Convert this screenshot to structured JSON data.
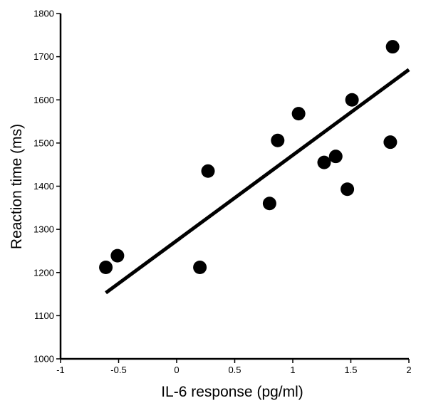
{
  "chart_data": {
    "type": "scatter",
    "title": "",
    "xlabel": "IL-6 response (pg/ml)",
    "ylabel": "Reaction time (ms)",
    "xlim": [
      -1,
      2
    ],
    "ylim": [
      1000,
      1800
    ],
    "xticks": [
      -1,
      -0.5,
      0,
      0.5,
      1,
      1.5,
      2
    ],
    "xtick_labels": [
      "-1",
      "-0.5",
      "0",
      "0.5",
      "1",
      "1.5",
      "2"
    ],
    "yticks": [
      1000,
      1100,
      1200,
      1300,
      1400,
      1500,
      1600,
      1700,
      1800
    ],
    "ytick_labels": [
      "1000",
      "1100",
      "1200",
      "1300",
      "1400",
      "1500",
      "1600",
      "1700",
      "1800"
    ],
    "grid": false,
    "series": [
      {
        "points": [
          {
            "x": -0.61,
            "y": 1212
          },
          {
            "x": -0.51,
            "y": 1239
          },
          {
            "x": 0.2,
            "y": 1212
          },
          {
            "x": 0.27,
            "y": 1435
          },
          {
            "x": 0.8,
            "y": 1360
          },
          {
            "x": 0.87,
            "y": 1506
          },
          {
            "x": 1.05,
            "y": 1568
          },
          {
            "x": 1.27,
            "y": 1455
          },
          {
            "x": 1.37,
            "y": 1469
          },
          {
            "x": 1.47,
            "y": 1393
          },
          {
            "x": 1.51,
            "y": 1600
          },
          {
            "x": 1.84,
            "y": 1502
          },
          {
            "x": 1.86,
            "y": 1723
          }
        ]
      }
    ],
    "trendline": {
      "x1": -0.61,
      "y1": 1153,
      "x2": 2.0,
      "y2": 1670
    }
  }
}
